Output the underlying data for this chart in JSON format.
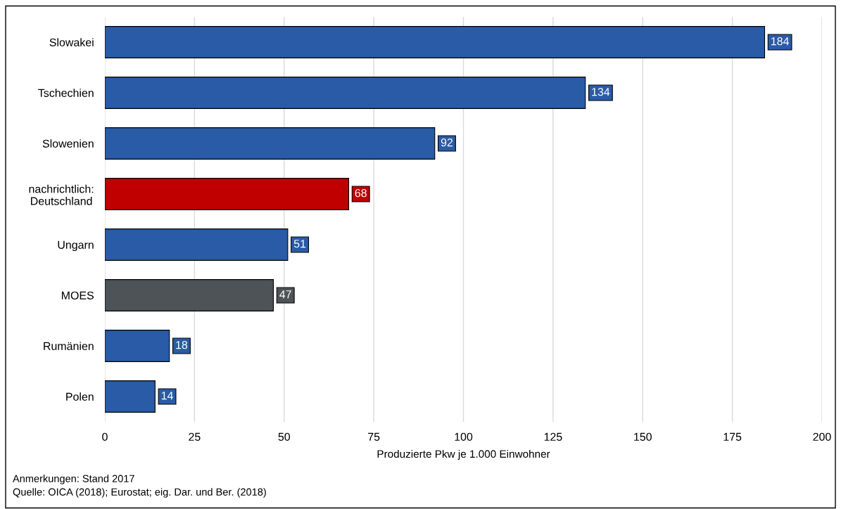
{
  "chart_data": {
    "type": "bar",
    "orientation": "horizontal",
    "categories": [
      "Slowakei",
      "Tschechien",
      "Slowenien",
      "nachrichtlich:\nDeutschland",
      "Ungarn",
      "MOES",
      "Rumänien",
      "Polen"
    ],
    "values": [
      184,
      134,
      92,
      68,
      51,
      47,
      18,
      14
    ],
    "colors": [
      "#2a5ba6",
      "#2a5ba6",
      "#2a5ba6",
      "#c00000",
      "#2a5ba6",
      "#4d5356",
      "#2a5ba6",
      "#2a5ba6"
    ],
    "xlabel": "Produzierte Pkw je 1.000 Einwohner",
    "xlim": [
      0,
      200
    ],
    "xticks": [
      0,
      25,
      50,
      75,
      100,
      125,
      150,
      175,
      200
    ],
    "grid": "x",
    "data_labels": true,
    "annotations": [
      "Anmerkungen: Stand 2017",
      "Quelle: OICA (2018); Eurostat; eig. Dar. und Ber. (2018)"
    ]
  }
}
